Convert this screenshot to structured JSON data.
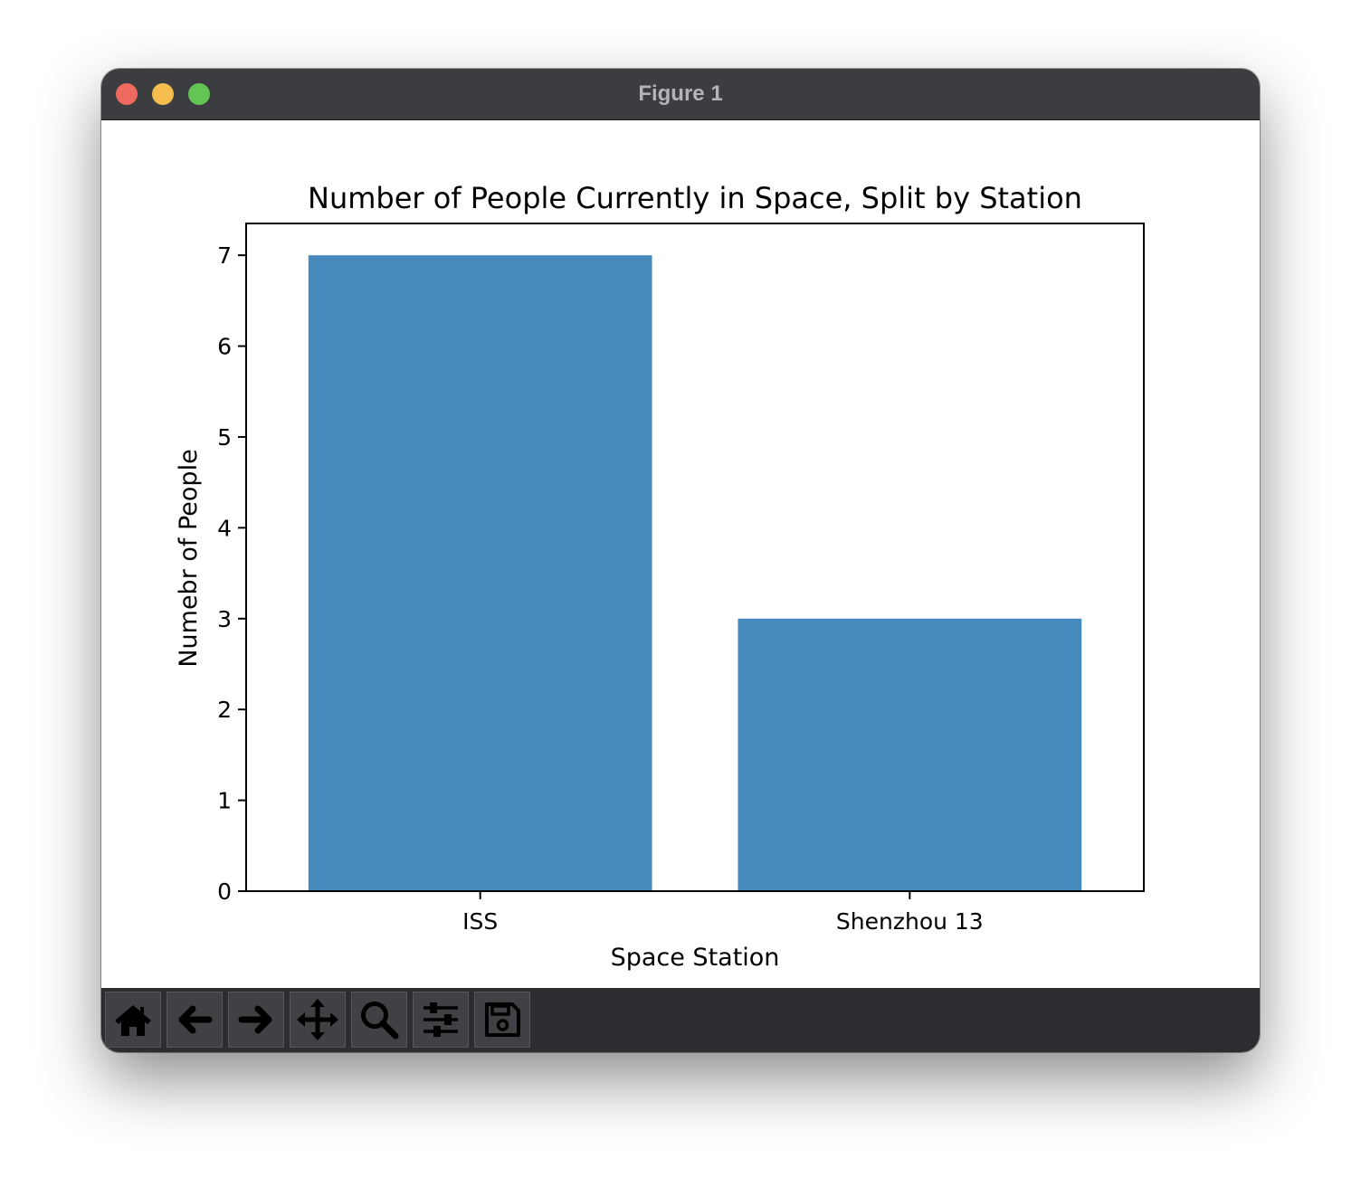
{
  "window": {
    "title": "Figure 1"
  },
  "toolbar": {
    "buttons": [
      {
        "name": "home-button",
        "icon": "home-icon"
      },
      {
        "name": "back-button",
        "icon": "arrow-left-icon"
      },
      {
        "name": "forward-button",
        "icon": "arrow-right-icon"
      },
      {
        "name": "pan-button",
        "icon": "move-icon"
      },
      {
        "name": "zoom-button",
        "icon": "magnifier-icon"
      },
      {
        "name": "configure-subplots-button",
        "icon": "sliders-icon"
      },
      {
        "name": "save-button",
        "icon": "floppy-disk-icon"
      }
    ]
  },
  "chart_data": {
    "type": "bar",
    "title": "Number of People Currently in Space, Split by Station",
    "xlabel": "Space Station",
    "ylabel": "Numebr of People",
    "categories": [
      "ISS",
      "Shenzhou 13"
    ],
    "values": [
      7,
      3
    ],
    "ylim": [
      0,
      7.35
    ],
    "yticks": [
      "0",
      "1",
      "2",
      "3",
      "4",
      "5",
      "6",
      "7"
    ],
    "bar_color": "#4689bc",
    "grid": false,
    "legend": "none"
  }
}
